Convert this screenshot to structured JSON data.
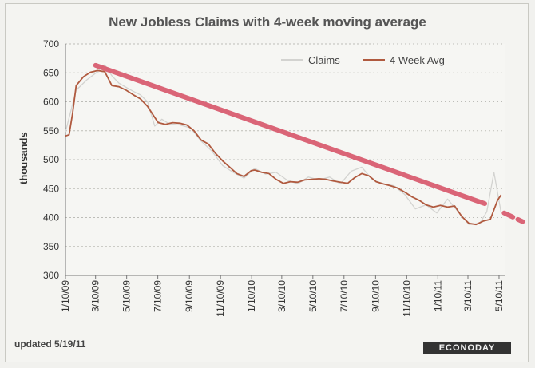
{
  "chart_data": {
    "type": "line",
    "title": "New Jobless Claims with 4-week moving average",
    "ylabel": "thousands",
    "xlabel": "",
    "ylim": [
      300,
      700
    ],
    "yticks": [
      300,
      350,
      400,
      450,
      500,
      550,
      600,
      650,
      700
    ],
    "x_ticks": [
      "1/10/09",
      "3/10/09",
      "5/10/09",
      "7/10/09",
      "9/10/09",
      "11/10/09",
      "1/10/10",
      "3/10/10",
      "5/10/10",
      "7/10/10",
      "9/10/10",
      "11/10/10",
      "1/10/11",
      "3/10/11",
      "5/10/11"
    ],
    "x_range": [
      "2009-01-10",
      "2011-05-21"
    ],
    "grid": "horizontal dotted",
    "legend_position": "top-right",
    "series": [
      {
        "name": "Claims",
        "color": "#d3d3d0",
        "x": [
          "2009-01-10",
          "2009-01-31",
          "2009-02-21",
          "2009-03-14",
          "2009-03-28",
          "2009-04-11",
          "2009-04-25",
          "2009-05-09",
          "2009-05-23",
          "2009-06-06",
          "2009-06-20",
          "2009-07-04",
          "2009-07-18",
          "2009-08-01",
          "2009-08-22",
          "2009-09-12",
          "2009-10-03",
          "2009-10-24",
          "2009-11-14",
          "2009-12-05",
          "2009-12-26",
          "2010-01-16",
          "2010-02-06",
          "2010-02-27",
          "2010-03-20",
          "2010-04-10",
          "2010-05-01",
          "2010-05-22",
          "2010-06-12",
          "2010-07-03",
          "2010-07-24",
          "2010-08-14",
          "2010-09-04",
          "2010-09-25",
          "2010-10-16",
          "2010-11-06",
          "2010-11-27",
          "2010-12-18",
          "2011-01-08",
          "2011-01-29",
          "2011-02-19",
          "2011-03-12",
          "2011-04-02",
          "2011-04-16",
          "2011-04-30",
          "2011-05-14"
        ],
        "y": [
          548,
          620,
          638,
          652,
          664,
          645,
          632,
          625,
          618,
          612,
          600,
          558,
          570,
          562,
          560,
          555,
          532,
          515,
          490,
          478,
          468,
          485,
          475,
          478,
          465,
          458,
          470,
          465,
          470,
          458,
          480,
          487,
          465,
          458,
          455,
          440,
          415,
          422,
          408,
          432,
          410,
          388,
          390,
          410,
          478,
          409
        ]
      },
      {
        "name": "4 Week Avg",
        "color": "#b05a3f",
        "x": [
          "2009-01-10",
          "2009-01-17",
          "2009-01-24",
          "2009-01-31",
          "2009-02-14",
          "2009-02-28",
          "2009-03-14",
          "2009-03-28",
          "2009-04-04",
          "2009-04-11",
          "2009-04-25",
          "2009-05-09",
          "2009-05-23",
          "2009-06-06",
          "2009-06-20",
          "2009-07-04",
          "2009-07-11",
          "2009-07-25",
          "2009-08-08",
          "2009-08-22",
          "2009-09-05",
          "2009-09-19",
          "2009-10-03",
          "2009-10-17",
          "2009-10-31",
          "2009-11-14",
          "2009-11-28",
          "2009-12-12",
          "2009-12-26",
          "2010-01-09",
          "2010-01-16",
          "2010-01-30",
          "2010-02-13",
          "2010-02-27",
          "2010-03-13",
          "2010-03-27",
          "2010-04-10",
          "2010-04-24",
          "2010-05-08",
          "2010-05-22",
          "2010-06-05",
          "2010-06-19",
          "2010-07-03",
          "2010-07-17",
          "2010-07-31",
          "2010-08-14",
          "2010-08-28",
          "2010-09-11",
          "2010-09-25",
          "2010-10-09",
          "2010-10-23",
          "2010-11-06",
          "2010-11-20",
          "2010-12-04",
          "2010-12-18",
          "2011-01-01",
          "2011-01-15",
          "2011-01-29",
          "2011-02-12",
          "2011-02-26",
          "2011-03-12",
          "2011-03-26",
          "2011-04-09",
          "2011-04-23",
          "2011-05-07",
          "2011-05-14"
        ],
        "y": [
          541,
          543,
          580,
          628,
          643,
          651,
          654,
          652,
          640,
          628,
          626,
          620,
          612,
          605,
          592,
          573,
          564,
          561,
          564,
          563,
          560,
          550,
          534,
          527,
          511,
          498,
          487,
          476,
          471,
          481,
          482,
          478,
          476,
          466,
          459,
          462,
          461,
          465,
          466,
          467,
          466,
          463,
          461,
          459,
          469,
          476,
          472,
          462,
          458,
          455,
          451,
          444,
          436,
          430,
          422,
          418,
          421,
          418,
          420,
          402,
          390,
          388,
          394,
          397,
          430,
          439
        ]
      }
    ],
    "annotations": [
      {
        "type": "trend-line",
        "color": "#d8566a",
        "from": {
          "x": "2009-03-10",
          "y": 663
        },
        "to": {
          "x": "2011-04-12",
          "y": 424
        }
      },
      {
        "type": "trend-line",
        "color": "#d8566a",
        "dashed": true,
        "from": {
          "x": "2011-05-20",
          "y": 408
        },
        "to": {
          "x": "2011-06-25",
          "y": 393
        }
      }
    ]
  },
  "footer": {
    "updated": "updated 5/19/11",
    "brand": "ECONODAY"
  }
}
